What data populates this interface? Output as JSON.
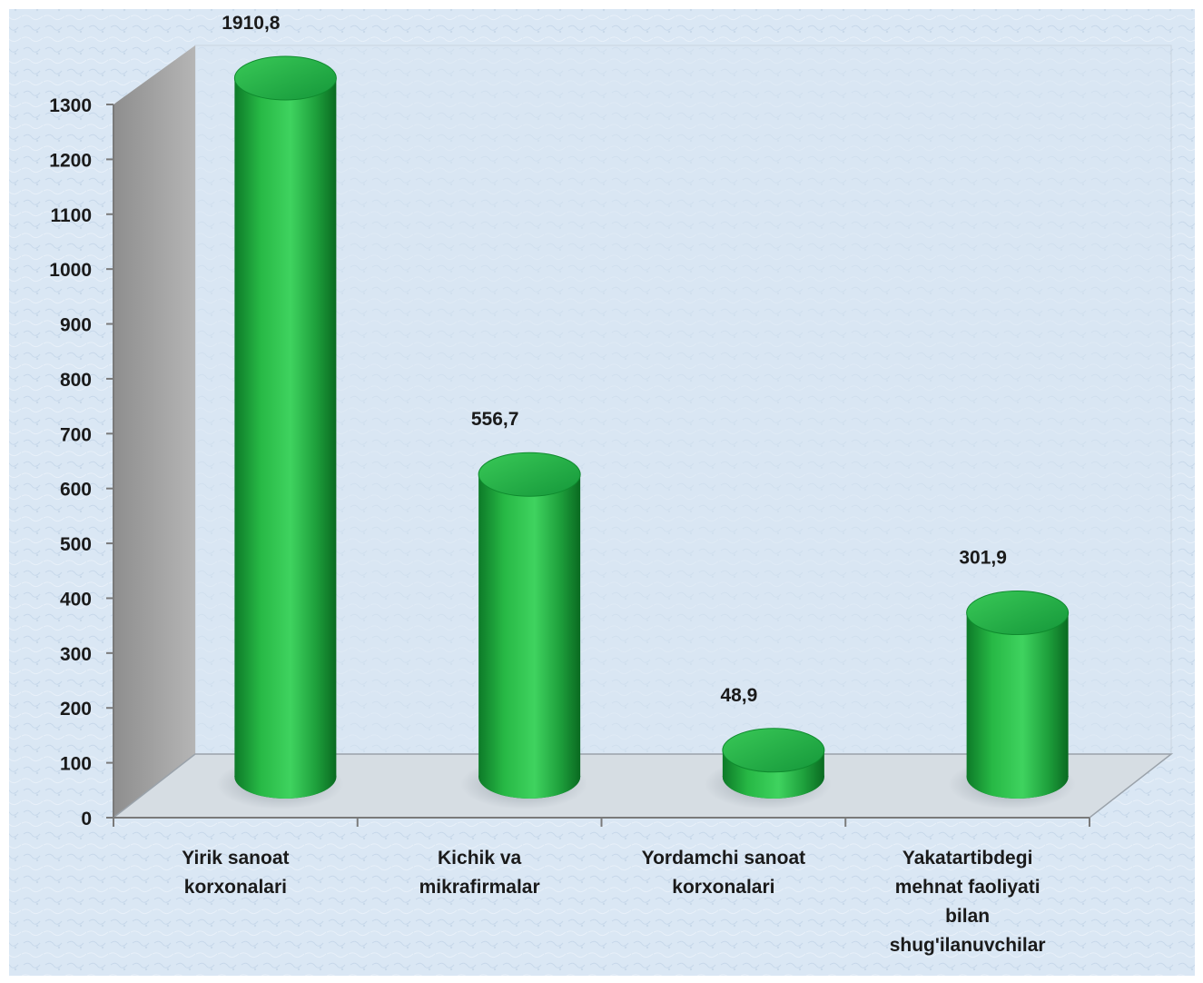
{
  "chart_data": {
    "type": "bar",
    "style": "3d-cylinder",
    "categories": [
      [
        "Yirik sanoat",
        "korxonalari"
      ],
      [
        "Kichik va",
        "mikrafirmalar"
      ],
      [
        "Yordamchi sanoat",
        "korxonalari"
      ],
      [
        "Yakatartibdegi",
        "mehnat faoliyati",
        "bilan",
        "shug'ilanuvchilar"
      ]
    ],
    "values": [
      1910.8,
      556.7,
      48.9,
      301.9
    ],
    "data_labels": [
      "1910,8",
      "556,7",
      "48,9",
      "301,9"
    ],
    "yticks": [
      0,
      100,
      200,
      300,
      400,
      500,
      600,
      700,
      800,
      900,
      1000,
      1100,
      1200,
      1300
    ],
    "ylim": [
      0,
      1300
    ],
    "title": "",
    "xlabel": "",
    "ylabel": "",
    "grid": false,
    "legend": "none",
    "colors": {
      "bar_main": "#18a43a",
      "bar_light": "#3fd05c",
      "bar_dark": "#0b6a22",
      "bar_top": "#2dbe4a",
      "side_wall": "#9a9a9a",
      "floor": "#cfd6dc",
      "background": "#dbe8f5"
    }
  }
}
